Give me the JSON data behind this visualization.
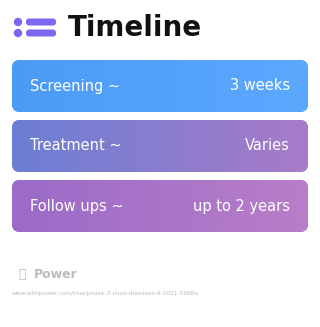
{
  "title": "Timeline",
  "title_fontsize": 20,
  "title_color": "#111111",
  "icon_color": "#7B68EE",
  "icon_line_color": "#7B68EE",
  "bg_color": "#ffffff",
  "rows": [
    {
      "label": "Screening ~",
      "value": "3 weeks",
      "color_left": "#4B9BF5",
      "color_right": "#5BA8FF"
    },
    {
      "label": "Treatment ~",
      "value": "Varies",
      "color_left": "#6B7FD4",
      "color_right": "#A87BC8"
    },
    {
      "label": "Follow ups ~",
      "value": "up to 2 years",
      "color_left": "#9B6BC8",
      "color_right": "#B87EC8"
    }
  ],
  "footer_logo_text": "Power",
  "footer_url": "www.withpower.com/trial/phase-3-virus-diseases-6-2021-5668a",
  "footer_color": "#bbbbbb",
  "row_fontsize": 10.5,
  "text_color": "#ffffff"
}
